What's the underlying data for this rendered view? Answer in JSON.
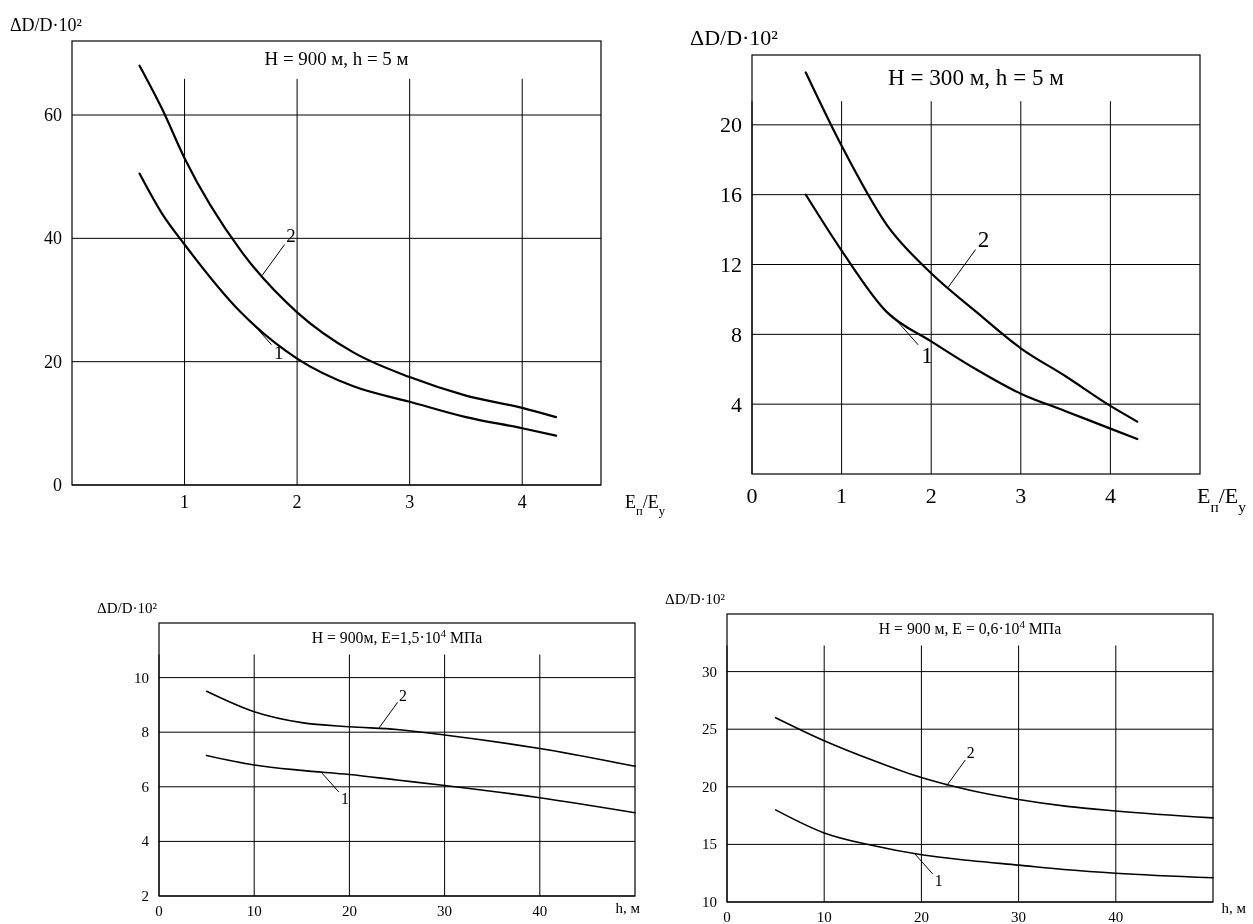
{
  "chart_data": [
    {
      "type": "line",
      "title": "H = 900 м, h = 5 м",
      "xlabel": "E$_{п}$/E$_{у}$",
      "ylabel": "ΔD/D·10²",
      "xlim": [
        0,
        4.7
      ],
      "ylim": [
        0,
        72
      ],
      "xticks": [
        1,
        2,
        3,
        4
      ],
      "yticks": [
        0,
        20,
        40,
        60
      ],
      "grid": true,
      "x": [
        0.6,
        0.8,
        1,
        1.5,
        2,
        2.5,
        3,
        3.5,
        4,
        4.3
      ],
      "series": [
        {
          "color": "#000000",
          "values": [
            50.5,
            44,
            39,
            28,
            20.5,
            16,
            13.5,
            11,
            9.2,
            8
          ]
        },
        {
          "color": "#000000",
          "values": [
            68,
            61,
            53,
            38,
            28,
            21.5,
            17.5,
            14.5,
            12.5,
            11
          ]
        }
      ],
      "annotations": [
        {
          "text": "1",
          "x": 1.58,
          "y": 26.7
        },
        {
          "text": "2",
          "x": 1.69,
          "y": 34
        }
      ]
    },
    {
      "type": "line",
      "title": "H = 300 м, h = 5 м",
      "xlabel": "E$_{п}$/E$_{у}$",
      "ylabel": "ΔD/D·10²",
      "xlim": [
        0,
        5
      ],
      "ylim": [
        0,
        24
      ],
      "xticks": [
        0,
        1,
        2,
        3,
        4
      ],
      "yticks": [
        4,
        8,
        12,
        16,
        20
      ],
      "grid": true,
      "x": [
        0.6,
        1,
        1.5,
        2,
        2.5,
        3,
        3.5,
        4,
        4.3
      ],
      "series": [
        {
          "color": "#000000",
          "values": [
            16,
            12.8,
            9.3,
            7.6,
            6,
            4.6,
            3.6,
            2.6,
            2
          ]
        },
        {
          "color": "#000000",
          "values": [
            23,
            18.8,
            14.3,
            11.5,
            9.3,
            7.2,
            5.6,
            3.9,
            3
          ]
        }
      ],
      "annotations": [
        {
          "text": "1",
          "x": 1.56,
          "y": 9.1
        },
        {
          "text": "2",
          "x": 2.19,
          "y": 10.7
        }
      ]
    },
    {
      "type": "line",
      "title": "H = 900м, E=1,5·10$^{4}$ МПа",
      "xlabel": "h, м",
      "ylabel": "ΔD/D·10²",
      "xlim": [
        0,
        50
      ],
      "ylim": [
        2,
        12
      ],
      "xticks": [
        0,
        10,
        20,
        30,
        40
      ],
      "yticks": [
        2,
        4,
        6,
        8,
        10
      ],
      "grid": true,
      "x": [
        5,
        10,
        15,
        20,
        25,
        30,
        40,
        50
      ],
      "series": [
        {
          "color": "#000000",
          "values": [
            7.15,
            6.8,
            6.6,
            6.45,
            6.25,
            6.05,
            5.6,
            5.05
          ]
        },
        {
          "color": "#000000",
          "values": [
            9.5,
            8.75,
            8.35,
            8.2,
            8.1,
            7.9,
            7.4,
            6.75
          ]
        }
      ],
      "annotations": [
        {
          "text": "1",
          "x": 17,
          "y": 6.55
        },
        {
          "text": "2",
          "x": 23.1,
          "y": 8.15
        }
      ]
    },
    {
      "type": "line",
      "title": "H = 900 м, E = 0,6·10$^{4}$ МПа",
      "xlabel": "h, м",
      "ylabel": "ΔD/D·10²",
      "xlim": [
        0,
        50
      ],
      "ylim": [
        10,
        35
      ],
      "xticks": [
        0,
        10,
        20,
        30,
        40
      ],
      "yticks": [
        10,
        15,
        20,
        25,
        30
      ],
      "grid": true,
      "x": [
        5,
        10,
        15,
        20,
        25,
        30,
        35,
        40,
        50
      ],
      "series": [
        {
          "color": "#000000",
          "values": [
            18,
            16,
            14.9,
            14.1,
            13.6,
            13.2,
            12.8,
            12.5,
            12.1
          ]
        },
        {
          "color": "#000000",
          "values": [
            26,
            24,
            22.3,
            20.8,
            19.7,
            18.9,
            18.3,
            17.9,
            17.3
          ]
        }
      ],
      "annotations": [
        {
          "text": "1",
          "x": 19.3,
          "y": 14.2
        },
        {
          "text": "2",
          "x": 22.6,
          "y": 20.1
        }
      ]
    }
  ]
}
